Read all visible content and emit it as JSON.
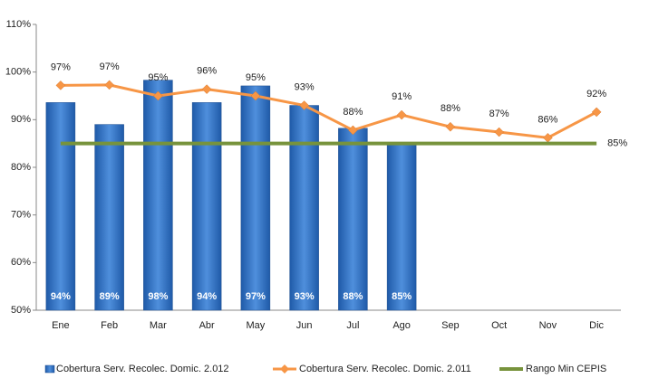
{
  "chart_data": {
    "type": "bar_line",
    "categories": [
      "Ene",
      "Feb",
      "Mar",
      "Abr",
      "May",
      "Jun",
      "Jul",
      "Ago",
      "Sep",
      "Oct",
      "Nov",
      "Dic"
    ],
    "series": [
      {
        "name": "Cobertura Serv. Recolec. Domic. 2.012",
        "type": "bar",
        "color": "#3a78c8",
        "values": [
          93.6,
          89,
          98.3,
          93.6,
          97.1,
          93,
          88.2,
          85.2,
          null,
          null,
          null,
          null
        ],
        "value_labels": [
          "94%",
          "89%",
          "98%",
          "94%",
          "97%",
          "93%",
          "88%",
          "85%",
          null,
          null,
          null,
          null
        ]
      },
      {
        "name": "Cobertura Serv. Recolec. Domic. 2.011",
        "type": "line",
        "color": "#f79646",
        "values": [
          97.2,
          97.3,
          95,
          96.4,
          95,
          93,
          87.8,
          91,
          88.5,
          87.4,
          86.2,
          91.6
        ],
        "value_labels": [
          "97%",
          "97%",
          "95%",
          "96%",
          "95%",
          "93%",
          "88%",
          "91%",
          "88%",
          "87%",
          "86%",
          "92%"
        ]
      },
      {
        "name": "Rango Min CEPIS",
        "type": "line",
        "color": "#77933c",
        "values": [
          85,
          85,
          85,
          85,
          85,
          85,
          85,
          85,
          85,
          85,
          85,
          85
        ],
        "value_labels": [
          null,
          null,
          null,
          null,
          null,
          null,
          null,
          null,
          null,
          null,
          null,
          "85%"
        ]
      }
    ],
    "ylim": [
      50,
      110
    ],
    "yticks": [
      {
        "value": 50,
        "label": "50%"
      },
      {
        "value": 60,
        "label": "60%"
      },
      {
        "value": 70,
        "label": "70%"
      },
      {
        "value": 80,
        "label": "80%"
      },
      {
        "value": 90,
        "label": "90%"
      },
      {
        "value": 100,
        "label": "100%"
      },
      {
        "value": 110,
        "label": "110%"
      }
    ],
    "grid": false,
    "legend": "bottom"
  }
}
